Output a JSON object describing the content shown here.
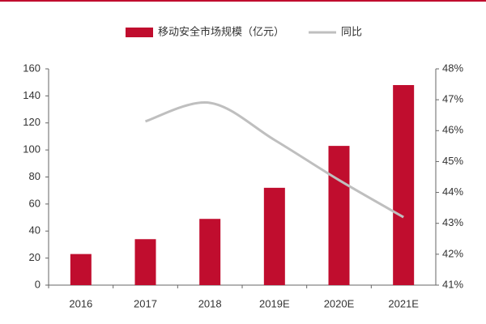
{
  "chart_data": {
    "type": "bar",
    "categories": [
      "2016",
      "2017",
      "2018",
      "2019E",
      "2020E",
      "2021E"
    ],
    "series": [
      {
        "name": "移动安全市场规模（亿元）",
        "type": "bar",
        "color": "#c00d2e",
        "values": [
          23,
          34,
          49,
          72,
          103,
          148
        ]
      },
      {
        "name": "同比",
        "type": "line",
        "axis": "y2",
        "color": "#bfbfbf",
        "values": [
          null,
          46.3,
          46.9,
          45.7,
          44.4,
          43.2
        ]
      }
    ],
    "ylim": [
      0,
      160
    ],
    "yticks": [
      0,
      20,
      40,
      60,
      80,
      100,
      120,
      140,
      160
    ],
    "y2lim": [
      41,
      48
    ],
    "y2ticks": [
      {
        "value": 41,
        "label": "41%"
      },
      {
        "value": 42,
        "label": "42%"
      },
      {
        "value": 43,
        "label": "43%"
      },
      {
        "value": 44,
        "label": "44%"
      },
      {
        "value": 45,
        "label": "45%"
      },
      {
        "value": 46,
        "label": "46%"
      },
      {
        "value": 47,
        "label": "47%"
      },
      {
        "value": 48,
        "label": "48%"
      }
    ],
    "legend": "top"
  }
}
